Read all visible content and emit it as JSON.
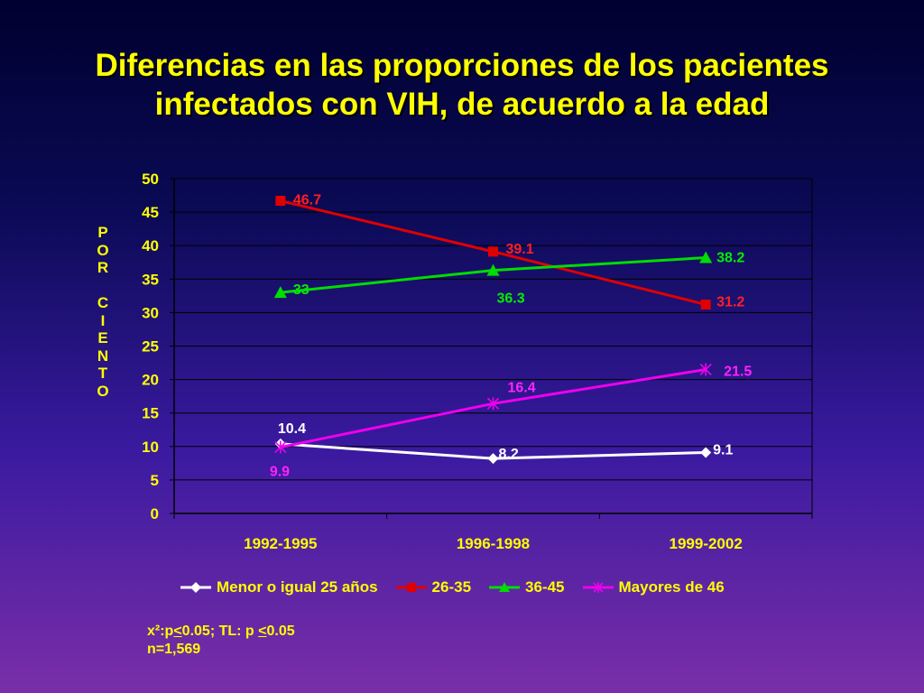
{
  "title": {
    "line1": "Diferencias en las proporciones de los pacientes",
    "line2": "infectados con VIH, de acuerdo a la edad"
  },
  "ylabel_letters": [
    "P",
    "O",
    "R",
    "",
    "C",
    "I",
    "E",
    "N",
    "T",
    "O"
  ],
  "footnote": {
    "line1_a": "x²:p",
    "line1_lt1": "<",
    "line1_b": "0.05;  TL: p ",
    "line1_lt2": "<",
    "line1_c": "0.05",
    "line2": "n=1,569"
  },
  "chart_data": {
    "type": "line",
    "categories": [
      "1992-1995",
      "1996-1998",
      "1999-2002"
    ],
    "ylim": [
      0,
      50
    ],
    "yticks": [
      0,
      5,
      10,
      15,
      20,
      25,
      30,
      35,
      40,
      45,
      50
    ],
    "grid": true,
    "legend_position": "bottom",
    "series": [
      {
        "name": "Menor o igual 25 años",
        "values": [
          10.4,
          8.2,
          9.1
        ],
        "labels": [
          "10.4",
          "8.2",
          "9.1"
        ],
        "color": "#ffffff",
        "marker": "diamond",
        "label_color": "#ffffff"
      },
      {
        "name": "26-35",
        "values": [
          46.7,
          39.1,
          31.2
        ],
        "labels": [
          "46.7",
          "39.1",
          "31.2"
        ],
        "color": "#e00000",
        "marker": "square",
        "label_color": "#ff2020"
      },
      {
        "name": "36-45",
        "values": [
          33,
          36.3,
          38.2
        ],
        "labels": [
          "33",
          "36.3",
          "38.2"
        ],
        "color": "#00dd00",
        "marker": "triangle",
        "label_color": "#00ee00"
      },
      {
        "name": "Mayores de 46",
        "values": [
          9.9,
          16.4,
          21.5
        ],
        "labels": [
          "9.9",
          "16.4",
          "21.5"
        ],
        "color": "#ee00ee",
        "marker": "star",
        "label_color": "#ff22ff"
      }
    ]
  }
}
